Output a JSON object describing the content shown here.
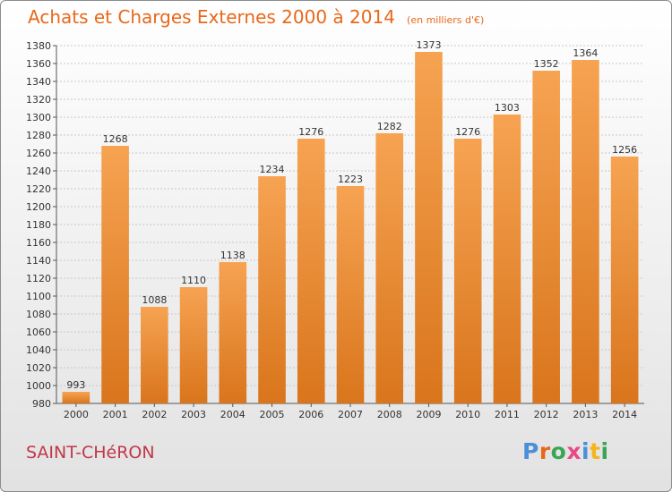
{
  "chart_data": {
    "type": "bar",
    "title": "Achats et Charges Externes 2000 à 2014",
    "unit": "(en milliers d'€)",
    "categories": [
      "2000",
      "2001",
      "2002",
      "2003",
      "2004",
      "2005",
      "2006",
      "2007",
      "2008",
      "2009",
      "2010",
      "2011",
      "2012",
      "2013",
      "2014"
    ],
    "values": [
      993,
      1268,
      1088,
      1110,
      1138,
      1234,
      1276,
      1223,
      1282,
      1373,
      1276,
      1303,
      1352,
      1364,
      1256
    ],
    "ylim": [
      980,
      1380
    ],
    "yticks": [
      980,
      1000,
      1020,
      1040,
      1060,
      1080,
      1100,
      1120,
      1140,
      1160,
      1180,
      1200,
      1220,
      1240,
      1260,
      1280,
      1300,
      1320,
      1340,
      1360,
      1380
    ],
    "grid": true,
    "bar_color_top": "#f6a352",
    "bar_color_bottom": "#d9751c"
  },
  "footer": {
    "city": "SAINT-CHéRON",
    "logo": {
      "text": "Proxiti",
      "letter_colors": [
        "#4a90d9",
        "#e8681a",
        "#3aa655",
        "#e84a8a",
        "#4a90d9",
        "#f2b51c",
        "#3aa655"
      ]
    }
  }
}
